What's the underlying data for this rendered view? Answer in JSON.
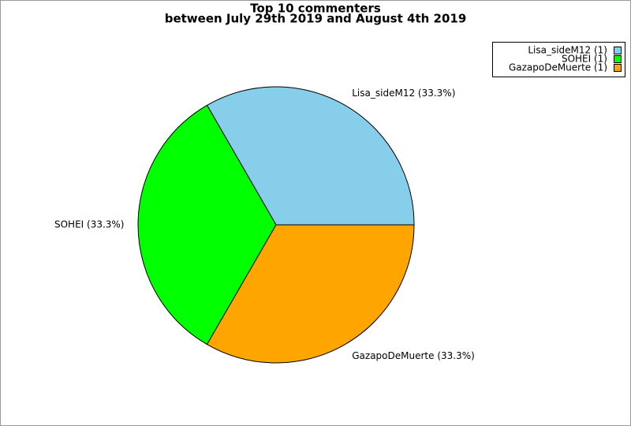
{
  "chart_data": {
    "type": "pie",
    "title": "Top 10 commenters",
    "subtitle": "between July 29th 2019 and August 4th 2019",
    "categories": [
      "Lisa_sideM12",
      "SOHEI",
      "GazapoDeMuerte"
    ],
    "values": [
      1,
      1,
      1
    ],
    "value_labels": [
      "Lisa_sideM12 (33.3%)",
      "SOHEI (33.3%)",
      "GazapoDeMuerte (33.3%)"
    ],
    "legend_labels": [
      "Lisa_sideM12 (1)",
      "SOHEI (1)",
      "GazapoDeMuerte (1)"
    ],
    "colors": [
      "#87ceeb",
      "#00ff00",
      "#ffa500"
    ],
    "legend": "upper right"
  }
}
